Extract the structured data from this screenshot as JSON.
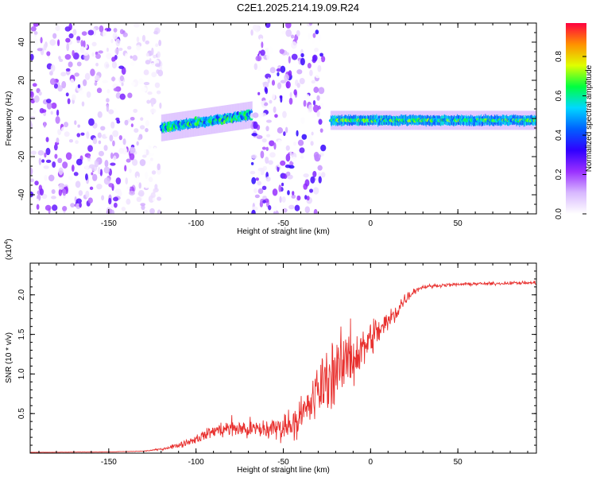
{
  "title": "C2E1.2025.214.19.09.R24",
  "colors": {
    "snr_line": "#e8302e",
    "background": "#ffffff",
    "axis": "#000000"
  },
  "chart_data": [
    {
      "type": "heatmap",
      "xlabel": "Height of straight line (km)",
      "ylabel": "Frequency (Hz)",
      "xlim": [
        -195,
        95
      ],
      "ylim": [
        -50,
        50
      ],
      "xticks": [
        -150,
        -100,
        -50,
        0,
        50
      ],
      "yticks": [
        -40,
        -20,
        0,
        20,
        40
      ],
      "colorbar": {
        "label": "Normalized spectral amplitude",
        "range": [
          0,
          0.97
        ],
        "ticks": [
          0.0,
          0.2,
          0.4,
          0.6,
          0.8
        ],
        "colormap": [
          "#ffffff",
          "#d8b8ff",
          "#9a30ff",
          "#3000ff",
          "#0060ff",
          "#00d8ff",
          "#00ff40",
          "#e0ff00",
          "#ff9000",
          "#ff0040"
        ]
      },
      "bands": [
        {
          "x_range": [
            -195,
            -120
          ],
          "freq_range": [
            -50,
            50
          ],
          "level": 0.22,
          "description": "noise"
        },
        {
          "x_range": [
            -120,
            -68
          ],
          "center_freq": [
            -5,
            2
          ],
          "level": 0.55
        },
        {
          "x_range": [
            -68,
            -27
          ],
          "freq_range": [
            -50,
            50
          ],
          "level": 0.25
        },
        {
          "x_range": [
            -23,
            95
          ],
          "center_freq": -1,
          "level": 0.6
        }
      ]
    },
    {
      "type": "line",
      "xlabel": "Height of straight line (km)",
      "ylabel": "SNR (10 * v/v)",
      "scale_label": "(x10^4)",
      "scale_text": {
        "base": "(x10",
        "exp": "4",
        "close": ")"
      },
      "xlim": [
        -195,
        95
      ],
      "ylim": [
        0,
        2.4
      ],
      "xticks": [
        -150,
        -100,
        -50,
        0,
        50
      ],
      "yticks": [
        0.5,
        1.0,
        1.5,
        2.0
      ],
      "series": [
        {
          "x": [
            -195,
            -150,
            -130,
            -120,
            -110,
            -100,
            -90,
            -80,
            -70,
            -60,
            -50,
            -40,
            -35,
            -30,
            -25,
            -20,
            -15,
            -12,
            -10,
            -5,
            0,
            5,
            10,
            15,
            20,
            25,
            30,
            40,
            50,
            60,
            70,
            80,
            95
          ],
          "y": [
            0.01,
            0.015,
            0.025,
            0.05,
            0.1,
            0.18,
            0.28,
            0.32,
            0.3,
            0.3,
            0.33,
            0.45,
            0.6,
            0.78,
            0.95,
            1.05,
            1.1,
            1.35,
            1.2,
            1.3,
            1.45,
            1.55,
            1.65,
            1.8,
            1.95,
            2.05,
            2.1,
            2.12,
            2.13,
            2.14,
            2.14,
            2.15,
            2.15
          ],
          "noise": [
            0.002,
            0.003,
            0.005,
            0.02,
            0.05,
            0.08,
            0.12,
            0.18,
            0.2,
            0.2,
            0.25,
            0.35,
            0.45,
            0.55,
            0.6,
            0.6,
            0.65,
            0.7,
            0.55,
            0.4,
            0.35,
            0.3,
            0.25,
            0.2,
            0.12,
            0.06,
            0.04,
            0.03,
            0.03,
            0.03,
            0.03,
            0.03,
            0.03
          ],
          "color": "#e8302e"
        }
      ]
    }
  ]
}
